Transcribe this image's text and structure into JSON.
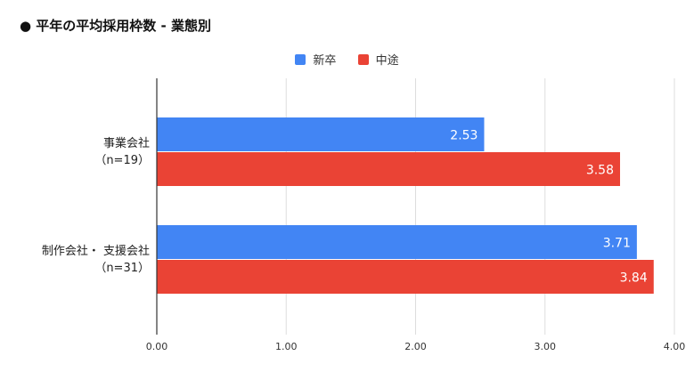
{
  "title": "● 平年の平均採用枠数 - 業態別",
  "legend": [
    {
      "label": "新卒",
      "color": "#4285f4"
    },
    {
      "label": "中途",
      "color": "#ea4335"
    }
  ],
  "chart_data": {
    "type": "bar",
    "orientation": "horizontal",
    "title": "● 平年の平均採用枠数 - 業態別",
    "categories": [
      {
        "line1": "事業会社",
        "line2": "（n=19）"
      },
      {
        "line1": "制作会社・ 支援会社",
        "line2": "（n=31）"
      }
    ],
    "series": [
      {
        "name": "新卒",
        "color": "#4285f4",
        "values": [
          2.53,
          3.71
        ],
        "labels": [
          "2.53",
          "3.71"
        ]
      },
      {
        "name": "中途",
        "color": "#ea4335",
        "values": [
          3.58,
          3.84
        ],
        "labels": [
          "3.58",
          "3.84"
        ]
      }
    ],
    "xlim": [
      0,
      4
    ],
    "xticks": [
      0,
      1,
      2,
      3,
      4
    ],
    "xtick_labels": [
      "0.00",
      "1.00",
      "2.00",
      "3.00",
      "4.00"
    ],
    "grid": true,
    "legend_position": "top-center"
  }
}
